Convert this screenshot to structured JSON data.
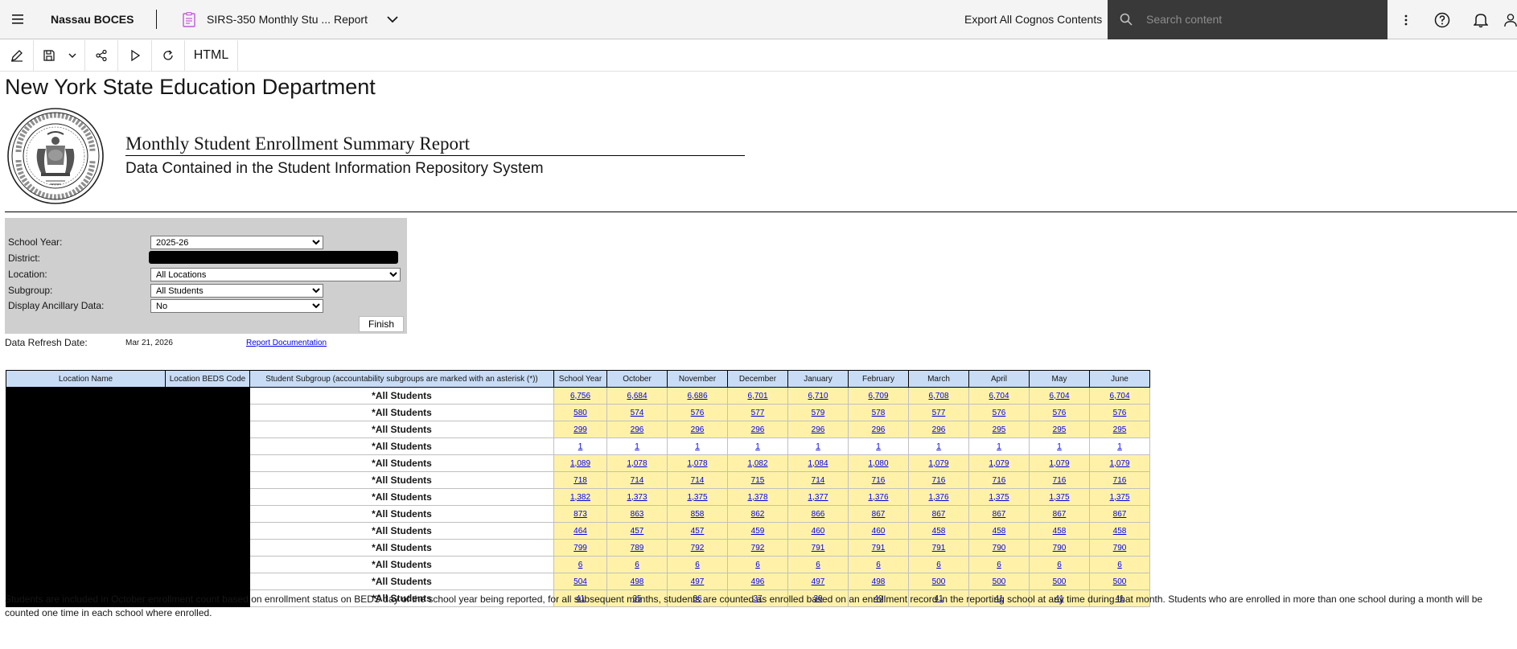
{
  "topbar": {
    "brand": "Nassau BOCES",
    "report_title": "SIRS-350 Monthly Stu ... Report",
    "export_label": "Export All Cognos Contents",
    "search_placeholder": "Search content"
  },
  "toolbar": {
    "output_format": "HTML"
  },
  "report": {
    "org_title": "New York State Education Department",
    "title": "Monthly Student Enrollment Summary Report",
    "subtitle": "Data Contained in the Student Information Repository System"
  },
  "prompts": {
    "school_year_label": "School Year:",
    "school_year_value": "2025-26",
    "district_label": "District:",
    "location_label": "Location:",
    "location_value": "All Locations",
    "subgroup_label": "Subgroup:",
    "subgroup_value": "All Students",
    "ancillary_label": "Display Ancillary Data:",
    "ancillary_value": "No",
    "finish_label": "Finish"
  },
  "refresh": {
    "label": "Data Refresh Date:",
    "value": "Mar 21, 2026",
    "doc_link": "Report Documentation"
  },
  "table": {
    "headers": [
      "Location Name",
      "Location BEDS Code",
      "Student Subgroup (accountability subgroups are marked with an asterisk (*))",
      "School Year",
      "October",
      "November",
      "December",
      "January",
      "February",
      "March",
      "April",
      "May",
      "June"
    ],
    "rows": [
      {
        "subgroup": "*All Students",
        "values": [
          "6,756",
          "6,684",
          "6,686",
          "6,701",
          "6,710",
          "6,709",
          "6,708",
          "6,704",
          "6,704",
          "6,704"
        ]
      },
      {
        "subgroup": "*All Students",
        "values": [
          "580",
          "574",
          "576",
          "577",
          "579",
          "578",
          "577",
          "576",
          "576",
          "576"
        ]
      },
      {
        "subgroup": "*All Students",
        "values": [
          "299",
          "296",
          "296",
          "296",
          "296",
          "296",
          "296",
          "295",
          "295",
          "295"
        ]
      },
      {
        "subgroup": "*All Students",
        "values": [
          "1",
          "1",
          "1",
          "1",
          "1",
          "1",
          "1",
          "1",
          "1",
          "1"
        ]
      },
      {
        "subgroup": "*All Students",
        "values": [
          "1,089",
          "1,078",
          "1,078",
          "1,082",
          "1,084",
          "1,080",
          "1,079",
          "1,079",
          "1,079",
          "1,079"
        ]
      },
      {
        "subgroup": "*All Students",
        "values": [
          "718",
          "714",
          "714",
          "715",
          "714",
          "716",
          "716",
          "716",
          "716",
          "716"
        ]
      },
      {
        "subgroup": "*All Students",
        "values": [
          "1,382",
          "1,373",
          "1,375",
          "1,378",
          "1,377",
          "1,376",
          "1,376",
          "1,375",
          "1,375",
          "1,375"
        ]
      },
      {
        "subgroup": "*All Students",
        "values": [
          "873",
          "863",
          "858",
          "862",
          "866",
          "867",
          "867",
          "867",
          "867",
          "867"
        ]
      },
      {
        "subgroup": "*All Students",
        "values": [
          "464",
          "457",
          "457",
          "459",
          "460",
          "460",
          "458",
          "458",
          "458",
          "458"
        ]
      },
      {
        "subgroup": "*All Students",
        "values": [
          "799",
          "789",
          "792",
          "792",
          "791",
          "791",
          "791",
          "790",
          "790",
          "790"
        ]
      },
      {
        "subgroup": "*All Students",
        "values": [
          "6",
          "6",
          "6",
          "6",
          "6",
          "6",
          "6",
          "6",
          "6",
          "6"
        ]
      },
      {
        "subgroup": "*All Students",
        "values": [
          "504",
          "498",
          "497",
          "496",
          "497",
          "498",
          "500",
          "500",
          "500",
          "500"
        ]
      },
      {
        "subgroup": "*All Students",
        "values": [
          "41",
          "35",
          "36",
          "37",
          "39",
          "40",
          "41",
          "41",
          "41",
          "41"
        ]
      }
    ]
  },
  "footnote": "Students are included in October enrollment count based on enrollment status on BEDS day of the school year being reported, for all subsequent months, students are counted as enrolled based on an enrollment record in the reporting school at any time during that month.  Students who are enrolled in more than one school during a month will be counted one time in each school where enrolled.",
  "colors": {
    "header_bg": "#c8dcf5",
    "cell_bg": "#fff2a8",
    "link": "#0000ee",
    "search_bg": "#393939"
  }
}
